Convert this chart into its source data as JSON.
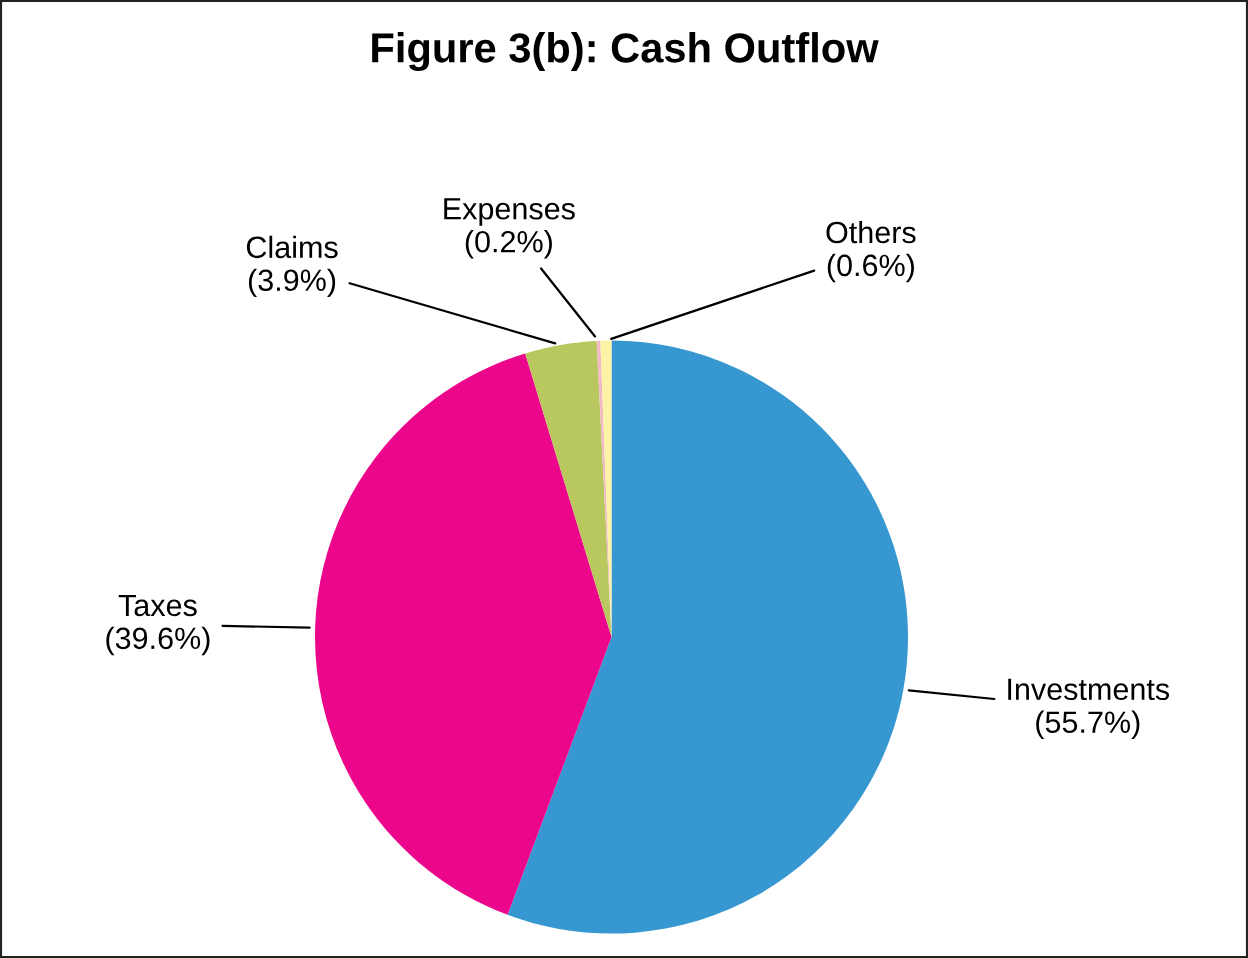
{
  "chart_data": {
    "type": "pie",
    "title": "Figure 3(b): Cash Outflow",
    "categories": [
      "Investments",
      "Taxes",
      "Claims",
      "Expenses",
      "Others"
    ],
    "values": [
      55.7,
      39.6,
      3.9,
      0.2,
      0.6
    ],
    "value_labels": [
      "(55.7%)",
      "(39.6%)",
      "(3.9%)",
      "(0.2%)",
      "(0.6%)"
    ],
    "colors": [
      "#3797d0",
      "#eb068b",
      "#b9c85e",
      "#f2b8c6",
      "#fdf3a6"
    ],
    "legend": false
  }
}
